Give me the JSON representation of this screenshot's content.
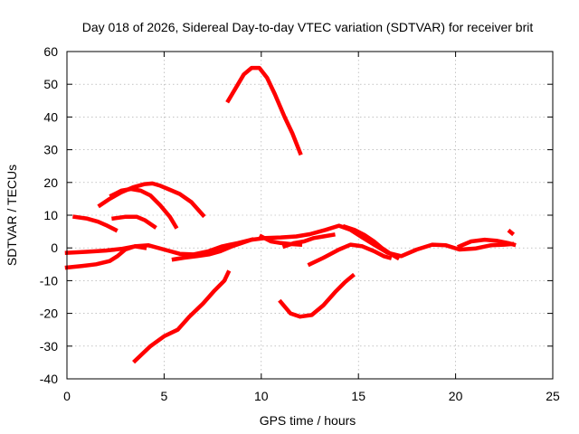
{
  "chart_data": {
    "type": "line",
    "title": "Day 018 of 2026, Sidereal Day-to-day VTEC variation (SDTVAR) for receiver brit",
    "xlabel": "GPS time / hours",
    "ylabel": "SDTVAR / TECUs",
    "xlim": [
      0,
      25
    ],
    "ylim": [
      -40,
      60
    ],
    "xticks": [
      0,
      5,
      10,
      15,
      20,
      25
    ],
    "yticks": [
      -40,
      -30,
      -20,
      -10,
      0,
      10,
      20,
      30,
      40,
      50,
      60
    ],
    "grid": true,
    "color": "#ff0000",
    "series": [
      {
        "name": "arc-peak",
        "x": [
          8.3,
          8.7,
          9.1,
          9.5,
          9.9,
          10.3,
          10.7,
          11.2,
          11.6,
          12.0
        ],
        "y": [
          45,
          49,
          53,
          55,
          55,
          52,
          47,
          40,
          35,
          29
        ]
      },
      {
        "name": "arc-upper-20",
        "x": [
          1.7,
          2.2,
          2.8,
          3.4,
          4.0,
          4.4,
          4.8,
          5.2,
          5.8,
          6.4,
          7.0
        ],
        "y": [
          13,
          15,
          17,
          18.5,
          19.5,
          19.7,
          19,
          18,
          16.5,
          14,
          10
        ]
      },
      {
        "name": "arc-upper-18",
        "x": [
          2.3,
          2.8,
          3.3,
          3.8,
          4.3,
          4.8,
          5.3,
          5.6
        ],
        "y": [
          16,
          17.5,
          18,
          17.5,
          16,
          13,
          9.5,
          6.5
        ]
      },
      {
        "name": "arc-upper-9",
        "x": [
          0.4,
          1.0,
          1.6,
          2.0,
          2.5
        ],
        "y": [
          9.5,
          9,
          8,
          7,
          5.5
        ]
      },
      {
        "name": "arc-mid-9",
        "x": [
          2.4,
          3.0,
          3.6,
          4.0,
          4.5
        ],
        "y": [
          9,
          9.5,
          9.5,
          8.5,
          6.5
        ]
      },
      {
        "name": "arc-main",
        "x": [
          0.0,
          1.0,
          2.0,
          2.8,
          3.5,
          4.2,
          5.0,
          5.8,
          6.5,
          7.3,
          8.0,
          8.8,
          9.5,
          10.2,
          11.0,
          11.8,
          12.5,
          13.3,
          14.0,
          14.6,
          15.2,
          15.8,
          16.5,
          17.2,
          18.0,
          18.8,
          19.5,
          20.2,
          21.0,
          21.8,
          22.5,
          22.9
        ],
        "y": [
          -1.5,
          -1.2,
          -0.8,
          -0.3,
          0.5,
          0.8,
          -0.5,
          -1.8,
          -2,
          -1,
          0.5,
          1.5,
          2.5,
          3,
          3.2,
          3.5,
          4.2,
          5.5,
          6.8,
          5.5,
          3.2,
          1,
          -1.5,
          -2.5,
          -0.5,
          1,
          0.8,
          -0.5,
          -0.2,
          0.8,
          1,
          1.2
        ]
      },
      {
        "name": "arc-lower-5",
        "x": [
          0.0,
          0.8,
          1.5,
          2.2,
          2.6,
          3.0,
          3.5,
          4.0
        ],
        "y": [
          -6,
          -5.5,
          -5,
          -4,
          -2.5,
          -0.5,
          0.5,
          0
        ]
      },
      {
        "name": "arc-mid-low",
        "x": [
          5.5,
          6.0,
          6.7,
          7.3,
          7.9,
          8.5,
          9.0,
          9.5
        ],
        "y": [
          -3.5,
          -3,
          -2.5,
          -2,
          -1,
          0.5,
          1.5,
          2.5
        ]
      },
      {
        "name": "arc-right-hump",
        "x": [
          12.5,
          13.2,
          14.0,
          14.6,
          15.2,
          15.8,
          16.3,
          16.6
        ],
        "y": [
          -5,
          -3,
          -0.5,
          1,
          0.5,
          -1,
          -2.5,
          -3
        ]
      },
      {
        "name": "arc-right-bump",
        "x": [
          14.3,
          14.8,
          15.3,
          15.8,
          16.2,
          16.7,
          17.0
        ],
        "y": [
          6.5,
          5.5,
          4,
          2,
          0,
          -2,
          -3
        ]
      },
      {
        "name": "arc-mid-block",
        "x": [
          10.0,
          10.5,
          11.0,
          11.5,
          12.0
        ],
        "y": [
          3.5,
          2,
          1.5,
          1.2,
          1
        ]
      },
      {
        "name": "arc-mid-block-2",
        "x": [
          11.2,
          11.7,
          12.2,
          12.7,
          13.2,
          13.7
        ],
        "y": [
          0.5,
          1.5,
          2,
          3,
          3.5,
          4
        ]
      },
      {
        "name": "arc-end-stack",
        "x": [
          20.2,
          20.8,
          21.5,
          22.1,
          22.7,
          23.0
        ],
        "y": [
          0.5,
          2,
          2.5,
          2.2,
          1.5,
          1
        ]
      },
      {
        "name": "arc-descending",
        "x": [
          3.5,
          4.3,
          5.0,
          5.7,
          6.3,
          7.0,
          7.6,
          8.1,
          8.3
        ],
        "y": [
          -34.5,
          -30,
          -27,
          -25,
          -21,
          -17,
          -13,
          -10,
          -7.5
        ]
      },
      {
        "name": "arc-bowl",
        "x": [
          11.0,
          11.5,
          12.0,
          12.6,
          13.2,
          13.8,
          14.3,
          14.7
        ],
        "y": [
          -16.5,
          -20,
          -21,
          -20.5,
          -17.5,
          -13.5,
          -10.5,
          -8.5
        ]
      },
      {
        "name": "dot-end",
        "x": [
          22.8,
          22.9
        ],
        "y": [
          5,
          4.5
        ]
      }
    ]
  }
}
